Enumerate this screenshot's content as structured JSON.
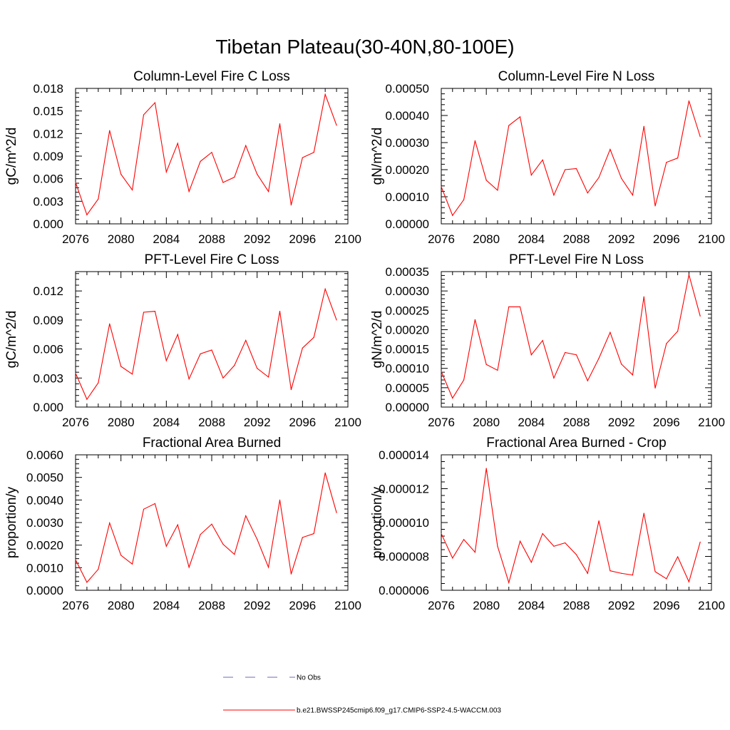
{
  "figure": {
    "title": "Tibetan Plateau(30-40N,80-100E)",
    "line_color": "#ff0000",
    "obs_color": "#6b6bb8"
  },
  "legend": {
    "items": [
      {
        "label": "No Obs",
        "style": "dashed",
        "color": "#6b6bb8"
      },
      {
        "label": "b.e21.BWSSP245cmip6.f09_g17.CMIP6-SSP2-4.5-WACCM.003",
        "style": "solid",
        "color": "#ff0000"
      }
    ]
  },
  "chart_data": [
    {
      "type": "line",
      "title": "Column-Level Fire C Loss",
      "ylabel": "gC/m^2/d",
      "xlim": [
        2076,
        2100
      ],
      "ylim": [
        0,
        0.018
      ],
      "xticks": [
        "2076",
        "2080",
        "2084",
        "2088",
        "2092",
        "2096",
        "2100"
      ],
      "yticks": [
        "0.000",
        "0.003",
        "0.006",
        "0.009",
        "0.012",
        "0.015",
        "0.018"
      ],
      "x": [
        2076,
        2077,
        2078,
        2079,
        2080,
        2081,
        2082,
        2083,
        2084,
        2085,
        2086,
        2087,
        2088,
        2089,
        2090,
        2091,
        2092,
        2093,
        2094,
        2095,
        2096,
        2097,
        2098,
        2099
      ],
      "values": [
        0.0055,
        0.0012,
        0.0033,
        0.0124,
        0.0066,
        0.0045,
        0.0145,
        0.0161,
        0.0069,
        0.0107,
        0.0043,
        0.0083,
        0.0095,
        0.0055,
        0.0062,
        0.0104,
        0.0066,
        0.0043,
        0.0133,
        0.0025,
        0.0088,
        0.0095,
        0.0172,
        0.0131
      ]
    },
    {
      "type": "line",
      "title": "Column-Level Fire N Loss",
      "ylabel": "gN/m^2/d",
      "xlim": [
        2076,
        2100
      ],
      "ylim": [
        0,
        0.0005
      ],
      "xticks": [
        "2076",
        "2080",
        "2084",
        "2088",
        "2092",
        "2096",
        "2100"
      ],
      "yticks": [
        "0.00000",
        "0.00010",
        "0.00020",
        "0.00030",
        "0.00040",
        "0.00050"
      ],
      "x": [
        2076,
        2077,
        2078,
        2079,
        2080,
        2081,
        2082,
        2083,
        2084,
        2085,
        2086,
        2087,
        2088,
        2089,
        2090,
        2091,
        2092,
        2093,
        2094,
        2095,
        2096,
        2097,
        2098,
        2099
      ],
      "values": [
        0.000137,
        3.1e-05,
        8.9e-05,
        0.000307,
        0.000161,
        0.000124,
        0.000363,
        0.000395,
        0.00018,
        0.000236,
        0.000106,
        0.0002,
        0.000204,
        0.000114,
        0.000171,
        0.000275,
        0.000168,
        0.000106,
        0.00036,
        6.6e-05,
        0.000227,
        0.000243,
        0.000454,
        0.000322
      ]
    },
    {
      "type": "line",
      "title": "PFT-Level Fire C Loss",
      "ylabel": "gC/m^2/d",
      "xlim": [
        2076,
        2100
      ],
      "ylim": [
        0,
        0.014
      ],
      "xticks": [
        "2076",
        "2080",
        "2084",
        "2088",
        "2092",
        "2096",
        "2100"
      ],
      "yticks": [
        "0.000",
        "0.003",
        "0.006",
        "0.009",
        "0.012"
      ],
      "x": [
        2076,
        2077,
        2078,
        2079,
        2080,
        2081,
        2082,
        2083,
        2084,
        2085,
        2086,
        2087,
        2088,
        2089,
        2090,
        2091,
        2092,
        2093,
        2094,
        2095,
        2096,
        2097,
        2098,
        2099
      ],
      "values": [
        0.0035,
        0.0008,
        0.0025,
        0.0086,
        0.0042,
        0.0034,
        0.0098,
        0.0099,
        0.0048,
        0.0075,
        0.0029,
        0.0055,
        0.0059,
        0.003,
        0.0043,
        0.0069,
        0.004,
        0.0031,
        0.0099,
        0.0018,
        0.0061,
        0.0072,
        0.0122,
        0.009
      ]
    },
    {
      "type": "line",
      "title": "PFT-Level Fire N Loss",
      "ylabel": "gN/m^2/d",
      "xlim": [
        2076,
        2100
      ],
      "ylim": [
        0,
        0.00035
      ],
      "xticks": [
        "2076",
        "2080",
        "2084",
        "2088",
        "2092",
        "2096",
        "2100"
      ],
      "yticks": [
        "0.00000",
        "0.00005",
        "0.00010",
        "0.00015",
        "0.00020",
        "0.00025",
        "0.00030",
        "0.00035"
      ],
      "x": [
        2076,
        2077,
        2078,
        2079,
        2080,
        2081,
        2082,
        2083,
        2084,
        2085,
        2086,
        2087,
        2088,
        2089,
        2090,
        2091,
        2092,
        2093,
        2094,
        2095,
        2096,
        2097,
        2098,
        2099
      ],
      "values": [
        9.2e-05,
        2.3e-05,
        7e-05,
        0.000226,
        0.00011,
        9.5e-05,
        0.000259,
        0.000259,
        0.000135,
        0.000172,
        7.5e-05,
        0.000141,
        0.000135,
        6.8e-05,
        0.000126,
        0.000193,
        0.000111,
        8.3e-05,
        0.000285,
        4.9e-05,
        0.000164,
        0.000196,
        0.000342,
        0.000235
      ]
    },
    {
      "type": "line",
      "title": "Fractional Area Burned",
      "ylabel": "proportion/y",
      "xlim": [
        2076,
        2100
      ],
      "ylim": [
        0,
        0.006
      ],
      "xticks": [
        "2076",
        "2080",
        "2084",
        "2088",
        "2092",
        "2096",
        "2100"
      ],
      "yticks": [
        "0.0000",
        "0.0010",
        "0.0020",
        "0.0030",
        "0.0040",
        "0.0050",
        "0.0060"
      ],
      "x": [
        2076,
        2077,
        2078,
        2079,
        2080,
        2081,
        2082,
        2083,
        2084,
        2085,
        2086,
        2087,
        2088,
        2089,
        2090,
        2091,
        2092,
        2093,
        2094,
        2095,
        2096,
        2097,
        2098,
        2099
      ],
      "values": [
        0.00135,
        0.00035,
        0.00093,
        0.00298,
        0.00155,
        0.00116,
        0.00359,
        0.00384,
        0.00195,
        0.0029,
        0.00102,
        0.00247,
        0.00293,
        0.00204,
        0.00159,
        0.0033,
        0.00226,
        0.00102,
        0.004,
        0.00072,
        0.00234,
        0.00251,
        0.0052,
        0.00344
      ]
    },
    {
      "type": "line",
      "title": "Fractional Area Burned - Crop",
      "ylabel": "proportion/y",
      "xlim": [
        2076,
        2100
      ],
      "ylim": [
        6e-06,
        1.4e-05
      ],
      "xticks": [
        "2076",
        "2080",
        "2084",
        "2088",
        "2092",
        "2096",
        "2100"
      ],
      "yticks": [
        "0.000006",
        "0.000008",
        "0.000010",
        "0.000012",
        "0.000014"
      ],
      "x": [
        2076,
        2077,
        2078,
        2079,
        2080,
        2081,
        2082,
        2083,
        2084,
        2085,
        2086,
        2087,
        2088,
        2089,
        2090,
        2091,
        2092,
        2093,
        2094,
        2095,
        2096,
        2097,
        2098,
        2099
      ],
      "values": [
        9.35e-06,
        7.9e-06,
        9e-06,
        8.25e-06,
        1.32e-05,
        8.6e-06,
        6.45e-06,
        8.9e-06,
        7.65e-06,
        9.35e-06,
        8.6e-06,
        8.8e-06,
        8.1e-06,
        7e-06,
        1.01e-05,
        7.15e-06,
        7e-06,
        6.9e-06,
        1.055e-05,
        7.1e-06,
        6.68e-06,
        7.98e-06,
        6.5e-06,
        8.85e-06
      ]
    }
  ]
}
